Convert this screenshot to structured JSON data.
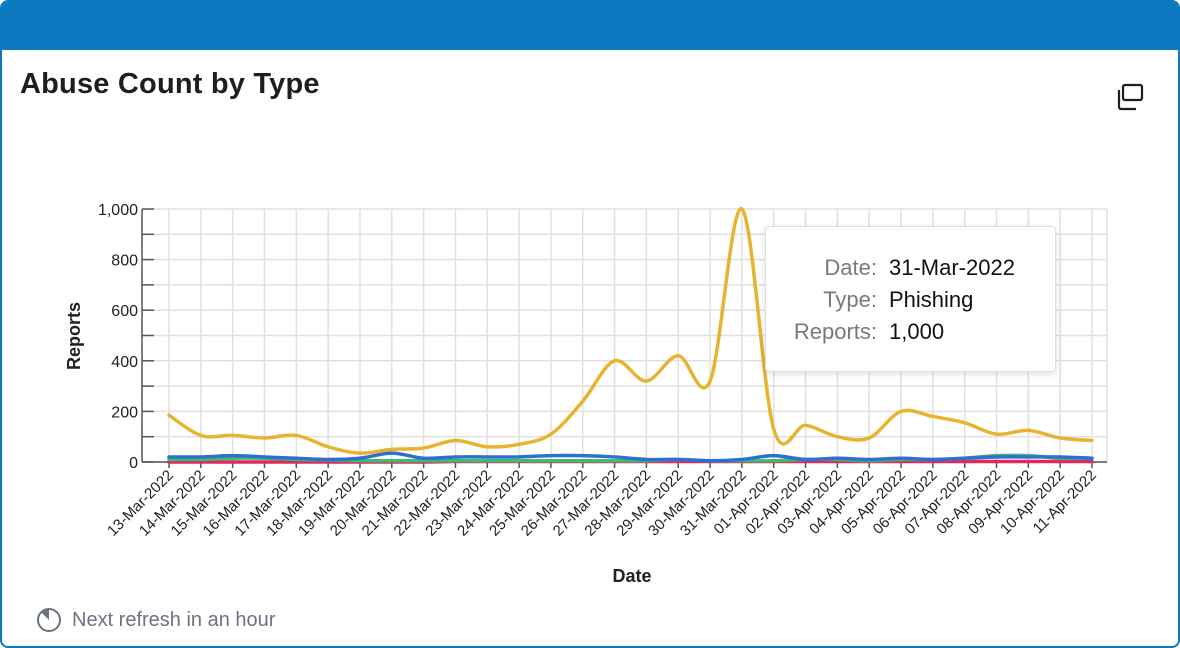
{
  "card": {
    "title": "Abuse Count by Type",
    "expand_icon": "expand-window-icon",
    "accent_color": "#0b78c0"
  },
  "footer": {
    "refresh_icon": "timer-icon",
    "refresh_text": "Next refresh in an hour"
  },
  "tooltip": {
    "date_label": "Date:",
    "date_value": "31-Mar-2022",
    "type_label": "Type:",
    "type_value": "Phishing",
    "reports_label": "Reports:",
    "reports_value": "1,000"
  },
  "chart_data": {
    "type": "line",
    "title": "",
    "xlabel": "Date",
    "ylabel": "Reports",
    "ylim": [
      0,
      1000
    ],
    "yticks": [
      0,
      200,
      400,
      600,
      800,
      1000
    ],
    "ytick_labels": [
      "0",
      "200",
      "400",
      "600",
      "800",
      "1,000"
    ],
    "grid": true,
    "x": [
      "13-Mar-2022",
      "14-Mar-2022",
      "15-Mar-2022",
      "16-Mar-2022",
      "17-Mar-2022",
      "18-Mar-2022",
      "19-Mar-2022",
      "20-Mar-2022",
      "21-Mar-2022",
      "22-Mar-2022",
      "23-Mar-2022",
      "24-Mar-2022",
      "25-Mar-2022",
      "26-Mar-2022",
      "27-Mar-2022",
      "28-Mar-2022",
      "29-Mar-2022",
      "30-Mar-2022",
      "31-Mar-2022",
      "01-Apr-2022",
      "02-Apr-2022",
      "03-Apr-2022",
      "04-Apr-2022",
      "05-Apr-2022",
      "06-Apr-2022",
      "07-Apr-2022",
      "08-Apr-2022",
      "09-Apr-2022",
      "10-Apr-2022",
      "11-Apr-2022"
    ],
    "series": [
      {
        "color": "#e6b42e",
        "values": [
          185,
          105,
          105,
          95,
          105,
          60,
          35,
          50,
          55,
          85,
          60,
          70,
          110,
          240,
          400,
          320,
          420,
          320,
          1000,
          130,
          145,
          100,
          95,
          200,
          180,
          155,
          110,
          125,
          95,
          85
        ]
      },
      {
        "color": "#2f6fd0",
        "values": [
          20,
          20,
          25,
          20,
          15,
          10,
          15,
          35,
          15,
          20,
          20,
          20,
          25,
          25,
          20,
          10,
          10,
          5,
          10,
          25,
          10,
          15,
          10,
          15,
          10,
          15,
          20,
          20,
          20,
          15
        ]
      },
      {
        "color": "#3dbb6e",
        "values": [
          10,
          10,
          15,
          15,
          10,
          8,
          5,
          5,
          5,
          5,
          5,
          5,
          5,
          5,
          5,
          5,
          10,
          5,
          5,
          5,
          10,
          10,
          5,
          10,
          10,
          15,
          25,
          25,
          15,
          15
        ]
      },
      {
        "color": "#e0285c",
        "values": [
          0,
          0,
          0,
          0,
          0,
          0,
          0,
          0,
          0,
          2,
          2,
          2,
          2,
          2,
          2,
          2,
          2,
          2,
          2,
          2,
          2,
          2,
          2,
          2,
          2,
          2,
          2,
          2,
          2,
          2
        ]
      }
    ]
  }
}
